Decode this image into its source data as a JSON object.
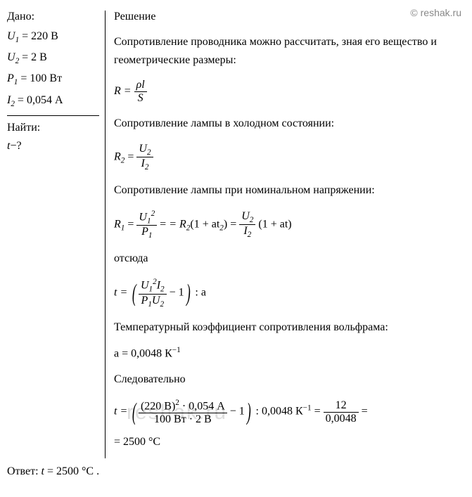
{
  "watermark": "© reshak.ru",
  "watermark_bg": "reshak.ru",
  "given": {
    "header": "Дано:",
    "u1_var": "U",
    "u1_sub": "1",
    "u1_eq": " = 220 В",
    "u2_var": "U",
    "u2_sub": "2",
    "u2_eq": " = 2 В",
    "p1_var": "P",
    "p1_sub": "1",
    "p1_eq": " = 100 Вт",
    "i2_var": "I",
    "i2_sub": "2",
    "i2_eq": " = 0,054 А"
  },
  "find": {
    "header": "Найти:",
    "var": "t",
    "eq": "−?"
  },
  "solution": {
    "header": "Решение",
    "text1": "Сопротивление проводника можно рассчитать, зная его вещество и геометрические размеры:",
    "f1_lhs": "R = ",
    "f1_top": "ρl",
    "f1_bot": "S",
    "text2": "Сопротивление лампы в холодном состоянии:",
    "f2_r": "R",
    "f2_rsub": "2",
    "f2_eq": " = ",
    "f2_top_u": "U",
    "f2_top_sub": "2",
    "f2_bot_i": "I",
    "f2_bot_sub": "2",
    "text3": "Сопротивление лампы при номинальном напряжении:",
    "f3_r1": "R",
    "f3_r1sub": "1",
    "f3_eq": " = ",
    "f3_top1_u": "U",
    "f3_top1_sub": "1",
    "f3_top1_sup": "2",
    "f3_bot1_p": "P",
    "f3_bot1_sub": "1",
    "f3_mid": " = R",
    "f3_mid_sub": "2",
    "f3_paren": "(1 + at",
    "f3_paren_sub": "2",
    "f3_paren_end": ") = ",
    "f3_top2_u": "U",
    "f3_top2_sub": "2",
    "f3_bot2_i": "I",
    "f3_bot2_sub": "2",
    "f3_end": " (1 + at)",
    "text4": "отсюда",
    "f4_t": "t = ",
    "f4_top_u": "U",
    "f4_top_usub": "1",
    "f4_top_usup": "2",
    "f4_top_i": "I",
    "f4_top_isub": "2",
    "f4_bot_p": "P",
    "f4_bot_psub": "1",
    "f4_bot_u": "U",
    "f4_bot_usub": "2",
    "f4_minus": " − 1",
    "f4_end": " : a",
    "text5": "Температурный коэффициент сопротивления вольфрама:",
    "f5": "a = 0,0048 К",
    "f5_sup": "−1",
    "text6": "Следовательно",
    "f6_t": "t = ",
    "f6_top": "(220 В)",
    "f6_top_sup": "2",
    "f6_top_rest": " · 0,054 А",
    "f6_bot": "100 Вт · 2 В",
    "f6_minus": " − 1",
    "f6_div": " : 0,0048 К",
    "f6_div_sup": "−1",
    "f6_eq": " = ",
    "f6_res_top": "12",
    "f6_res_bot": "0,0048",
    "f6_final": " =",
    "f7": "= 2500 °С"
  },
  "answer": {
    "label": "Ответ: ",
    "var": "t",
    "val": " = 2500 °С ."
  }
}
